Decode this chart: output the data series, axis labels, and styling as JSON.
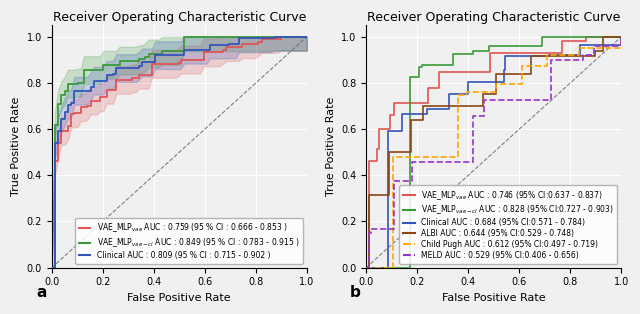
{
  "title": "Receiver Operating Characteristic Curve",
  "xlabel": "False Positive Rate",
  "ylabel": "True Positive Rate",
  "colors_a": {
    "red": "#e05555",
    "green": "#3a9a3a",
    "blue": "#3355bb"
  },
  "colors_b": {
    "red": "#e05555",
    "green": "#3a9a3a",
    "blue": "#3355bb",
    "brown": "#8B4513",
    "orange": "#FFA500",
    "purple": "#9932CC"
  },
  "legend_a": [
    [
      "VAE_MLP$_{vae}$ AUC : 0.759 (95 % CI : 0.666 - 0.853 )",
      "#e05555",
      "solid"
    ],
    [
      "VAE_MLP$_{vae-cl}$ AUC : 0.849 (95 % CI : 0.783 - 0.915 )",
      "#3a9a3a",
      "solid"
    ],
    [
      "Clinical AUC : 0.809 (95 % CI : 0.715 - 0.902 )",
      "#3355bb",
      "solid"
    ]
  ],
  "legend_b": [
    [
      "VAE_MLP$_{vae}$ AUC : 0.746 (95% CI:0.637 - 0.837)",
      "#e05555",
      "solid"
    ],
    [
      "VAE_MLP$_{vae-cl}$ AUC : 0.828 (95% CI:0.727 - 0.903)",
      "#3a9a3a",
      "solid"
    ],
    [
      "Clinical AUC : 0.684 (95% CI:0.571 - 0.784)",
      "#3355bb",
      "solid"
    ],
    [
      "ALBI AUC : 0.644 (95% CI:0.529 - 0.748)",
      "#8B4513",
      "solid"
    ],
    [
      "Child Pugh AUC : 0.612 (95% CI:0.497 - 0.719)",
      "#FFA500",
      "dashed"
    ],
    [
      "MELD AUC : 0.529 (95% CI:0.406 - 0.656)",
      "#9932CC",
      "dashed"
    ]
  ],
  "background_color": "#f0f0f0",
  "grid_color": "#ffffff",
  "fontsize_title": 9,
  "fontsize_label": 8,
  "fontsize_tick": 7,
  "fontsize_legend": 5.5
}
